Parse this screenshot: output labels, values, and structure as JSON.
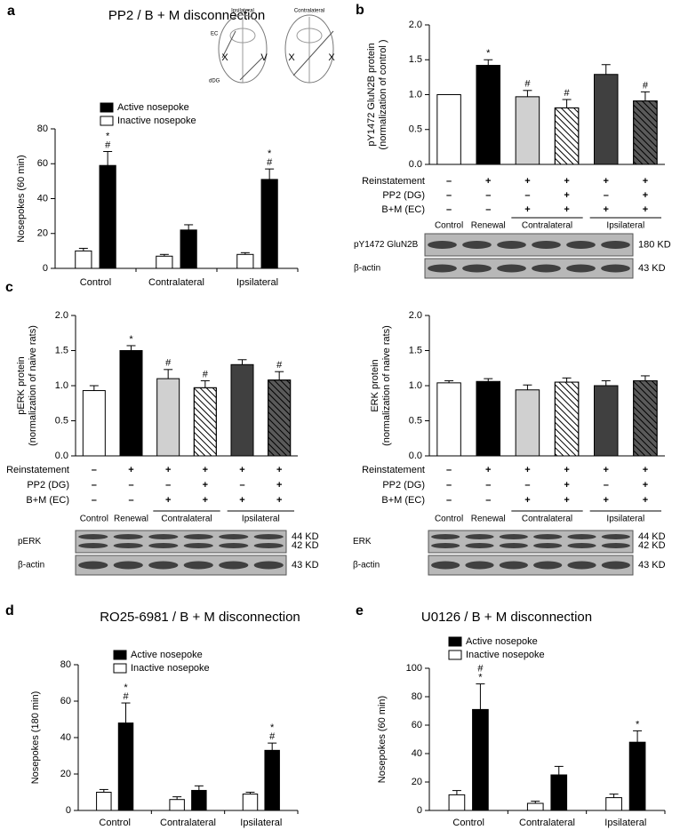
{
  "chart_data": [
    {
      "type": "bar",
      "panel": "a",
      "title": "PP2 / B + M disconnection",
      "ylabel": [
        "Nosepokes (60 min)"
      ],
      "categories": [
        "Control",
        "Contralateral",
        "Ipsilateral"
      ],
      "series": [
        {
          "name": "Active nosepoke",
          "color": "#000000",
          "values": [
            59,
            22,
            51
          ],
          "errors": [
            8,
            3,
            6
          ],
          "significance": [
            [
              "*",
              "#"
            ],
            null,
            [
              "*",
              "#"
            ]
          ]
        },
        {
          "name": "Inactive nosepoke",
          "color": "#ffffff",
          "values": [
            10,
            7,
            8
          ],
          "errors": [
            1.5,
            1,
            1
          ],
          "significance": [
            null,
            null,
            null
          ]
        }
      ],
      "ylim": [
        0,
        80
      ],
      "yticks": [
        0,
        20,
        40,
        60,
        80
      ],
      "inset": {
        "sides": [
          "Ipsilateral",
          "Contralateral"
        ],
        "regions": [
          "EC",
          "dDG"
        ],
        "symbols": [
          "X",
          "V",
          "X",
          "X"
        ]
      }
    },
    {
      "type": "bar",
      "panel": "b",
      "ylabel": [
        "pY1472 GluN2B protein",
        "(normalization of control )"
      ],
      "values": [
        1.0,
        1.42,
        0.97,
        0.81,
        1.29,
        0.91
      ],
      "errors": [
        0,
        0.08,
        0.09,
        0.12,
        0.14,
        0.13
      ],
      "colors": [
        "#ffffff",
        "#000000",
        "#d0d0d0",
        "#ffffff",
        "#404040",
        "#5a5a5a"
      ],
      "hatch": [
        false,
        false,
        false,
        true,
        false,
        true
      ],
      "significance": [
        null,
        [
          "*"
        ],
        [
          "#"
        ],
        [
          "#"
        ],
        null,
        [
          "#"
        ]
      ],
      "ylim": [
        0,
        2.0
      ],
      "yticks": [
        {
          "value": 0,
          "label": "0.0"
        },
        {
          "value": 0.5,
          "label": "0.5"
        },
        {
          "value": 1.0,
          "label": "1.0"
        },
        {
          "value": 1.5,
          "label": "1.5"
        },
        {
          "value": 2.0,
          "label": "2.0"
        }
      ],
      "conditions": [
        {
          "name": "Reinstatement",
          "signs": [
            "–",
            "+",
            "+",
            "+",
            "+",
            "+"
          ]
        },
        {
          "name": "PP2 (DG)",
          "signs": [
            "–",
            "–",
            "–",
            "+",
            "–",
            "+"
          ]
        },
        {
          "name": "B+M (EC)",
          "signs": [
            "–",
            "–",
            "+",
            "+",
            "+",
            "+"
          ]
        }
      ],
      "groups": [
        "Control",
        "Renewal",
        "Contralateral",
        "Ipsilateral"
      ],
      "blots": [
        {
          "name": "pY1472 GluN2B",
          "sizes": [
            "180 KD"
          ]
        },
        {
          "name": "β-actin",
          "sizes": [
            "43 KD"
          ]
        }
      ]
    },
    {
      "type": "bar",
      "panel": "c",
      "ylabel": [
        "pERK protein",
        "(normalization of naive rats)"
      ],
      "values": [
        0.93,
        1.5,
        1.1,
        0.97,
        1.3,
        1.08
      ],
      "errors": [
        0.07,
        0.07,
        0.13,
        0.1,
        0.07,
        0.12
      ],
      "colors": [
        "#ffffff",
        "#000000",
        "#d0d0d0",
        "#ffffff",
        "#404040",
        "#5a5a5a"
      ],
      "hatch": [
        false,
        false,
        false,
        true,
        false,
        true
      ],
      "significance": [
        null,
        [
          "*"
        ],
        [
          "#"
        ],
        [
          "#"
        ],
        null,
        [
          "#"
        ]
      ],
      "ylim": [
        0,
        2.0
      ],
      "yticks": [
        {
          "value": 0,
          "label": "0.0"
        },
        {
          "value": 0.5,
          "label": "0.5"
        },
        {
          "value": 1.0,
          "label": "1.0"
        },
        {
          "value": 1.5,
          "label": "1.5"
        },
        {
          "value": 2.0,
          "label": "2.0"
        }
      ],
      "conditions": [
        {
          "name": "Reinstatement",
          "signs": [
            "–",
            "+",
            "+",
            "+",
            "+",
            "+"
          ]
        },
        {
          "name": "PP2 (DG)",
          "signs": [
            "–",
            "–",
            "–",
            "+",
            "–",
            "+"
          ]
        },
        {
          "name": "B+M (EC)",
          "signs": [
            "–",
            "–",
            "+",
            "+",
            "+",
            "+"
          ]
        }
      ],
      "groups": [
        "Control",
        "Renewal",
        "Contralateral",
        "Ipsilateral"
      ],
      "blots": [
        {
          "name": "pERK",
          "sizes": [
            "44 KD",
            "42 KD"
          ]
        },
        {
          "name": "β-actin",
          "sizes": [
            "43 KD"
          ]
        }
      ]
    },
    {
      "type": "bar",
      "ylabel": [
        "ERK protein",
        "(normalization of naive rats)"
      ],
      "values": [
        1.04,
        1.06,
        0.94,
        1.05,
        1.0,
        1.07
      ],
      "errors": [
        0.03,
        0.04,
        0.07,
        0.06,
        0.07,
        0.07
      ],
      "colors": [
        "#ffffff",
        "#000000",
        "#d0d0d0",
        "#ffffff",
        "#404040",
        "#5a5a5a"
      ],
      "hatch": [
        false,
        false,
        false,
        true,
        false,
        true
      ],
      "ylim": [
        0,
        2.0
      ],
      "yticks": [
        {
          "value": 0,
          "label": "0.0"
        },
        {
          "value": 0.5,
          "label": "0.5"
        },
        {
          "value": 1.0,
          "label": "1.0"
        },
        {
          "value": 1.5,
          "label": "1.5"
        },
        {
          "value": 2.0,
          "label": "2.0"
        }
      ],
      "conditions": [
        {
          "name": "Reinstatement",
          "signs": [
            "–",
            "+",
            "+",
            "+",
            "+",
            "+"
          ]
        },
        {
          "name": "PP2 (DG)",
          "signs": [
            "–",
            "–",
            "–",
            "+",
            "–",
            "+"
          ]
        },
        {
          "name": "B+M (EC)",
          "signs": [
            "–",
            "–",
            "+",
            "+",
            "+",
            "+"
          ]
        }
      ],
      "groups": [
        "Control",
        "Renewal",
        "Contralateral",
        "Ipsilateral"
      ],
      "blots": [
        {
          "name": "ERK",
          "sizes": [
            "44 KD",
            "42 KD"
          ]
        },
        {
          "name": "β-actin",
          "sizes": [
            "43 KD"
          ]
        }
      ]
    },
    {
      "type": "bar",
      "panel": "d",
      "title": "RO25-6981 / B + M disconnection",
      "ylabel": [
        "Nosepokes (180 min)"
      ],
      "categories": [
        "Control",
        "Contralateral",
        "Ipsilateral"
      ],
      "series": [
        {
          "name": "Active nosepoke",
          "color": "#000000",
          "values": [
            48,
            11,
            33
          ],
          "errors": [
            11,
            2.5,
            4
          ],
          "significance": [
            [
              "*",
              "#"
            ],
            null,
            [
              "*",
              "#"
            ]
          ]
        },
        {
          "name": "Inactive nosepoke",
          "color": "#ffffff",
          "values": [
            10,
            6,
            9
          ],
          "errors": [
            1.5,
            1.5,
            1
          ],
          "significance": [
            null,
            null,
            null
          ]
        }
      ],
      "ylim": [
        0,
        80
      ],
      "yticks": [
        0,
        20,
        40,
        60,
        80
      ]
    },
    {
      "type": "bar",
      "panel": "e",
      "title": "U0126 / B + M disconnection",
      "ylabel": [
        "Nosepokes (60 min)"
      ],
      "categories": [
        "Control",
        "Contralateral",
        "Ipsilateral"
      ],
      "series": [
        {
          "name": "Active nosepoke",
          "color": "#000000",
          "values": [
            71,
            25,
            48
          ],
          "errors": [
            18,
            6,
            8
          ],
          "significance": [
            [
              "#",
              "*"
            ],
            null,
            [
              "*"
            ]
          ]
        },
        {
          "name": "Inactive nosepoke",
          "color": "#ffffff",
          "values": [
            11,
            5,
            9
          ],
          "errors": [
            3,
            1.5,
            2.5
          ],
          "significance": [
            null,
            null,
            null
          ]
        }
      ],
      "ylim": [
        0,
        100
      ],
      "yticks": [
        0,
        20,
        40,
        60,
        80,
        100
      ]
    }
  ]
}
